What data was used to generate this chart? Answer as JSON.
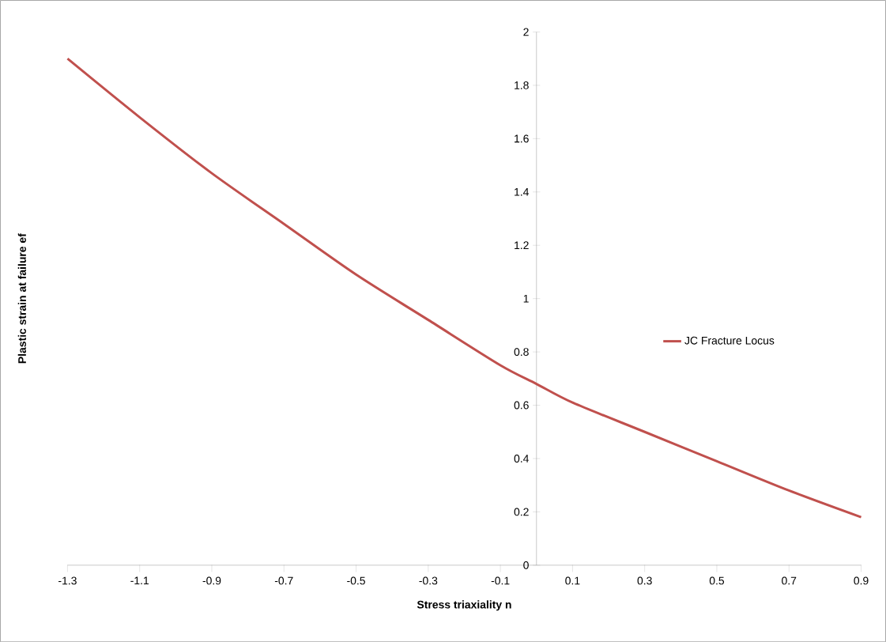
{
  "chart_data": {
    "type": "line",
    "xlabel": "Stress triaxiality n",
    "ylabel": "Plastic strain at failure ef",
    "series": [
      {
        "name": "JC Fracture Locus",
        "color": "#c0504d",
        "x": [
          -1.3,
          -1.1,
          -0.9,
          -0.7,
          -0.5,
          -0.3,
          -0.1,
          0,
          0.1,
          0.3,
          0.5,
          0.7,
          0.9
        ],
        "values": [
          1.9,
          1.68,
          1.47,
          1.28,
          1.09,
          0.92,
          0.75,
          0.68,
          0.61,
          0.5,
          0.39,
          0.28,
          0.18
        ]
      }
    ],
    "xlim": [
      -1.3,
      0.9
    ],
    "ylim": [
      0,
      2
    ],
    "xticks": [
      -1.3,
      -1.1,
      -0.9,
      -0.7,
      -0.5,
      -0.3,
      -0.1,
      0.1,
      0.3,
      0.5,
      0.7,
      0.9
    ],
    "yticks": [
      0,
      0.2,
      0.4,
      0.6,
      0.8,
      1,
      1.2,
      1.4,
      1.6,
      1.8,
      2
    ],
    "legend": "right",
    "grid": false,
    "marker": "none",
    "line_style": "solid"
  }
}
